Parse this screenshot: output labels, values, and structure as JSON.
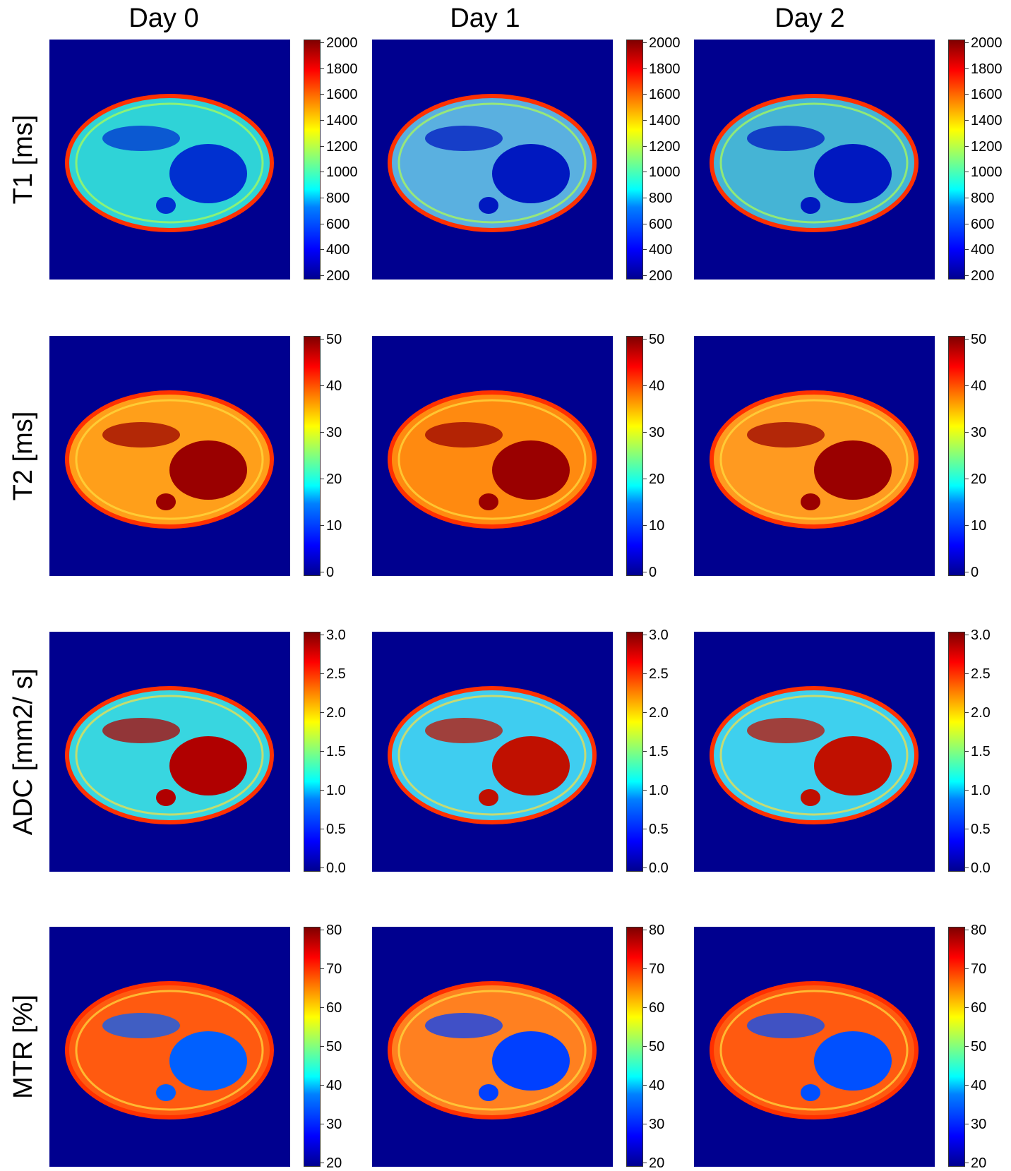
{
  "columns": [
    "Day 0",
    "Day 1",
    "Day 2"
  ],
  "rows": [
    {
      "label": "T1 [ms]",
      "ticks": [
        "2000",
        "1800",
        "1600",
        "1400",
        "1200",
        "1000",
        "800",
        "600",
        "400",
        "200"
      ]
    },
    {
      "label": "T2 [ms]",
      "ticks": [
        "50",
        "40",
        "30",
        "20",
        "10",
        "0"
      ]
    },
    {
      "label": "ADC [mm2/ s]",
      "ticks": [
        "3.0",
        "2.5",
        "2.0",
        "1.5",
        "1.0",
        "0.5",
        "0.0"
      ]
    },
    {
      "label": "MTR [%]",
      "ticks": [
        "80",
        "70",
        "60",
        "50",
        "40",
        "30",
        "20"
      ]
    }
  ],
  "colormap": "jet",
  "colors": {
    "background": "#00008f",
    "low": "#0000ff",
    "mid_low": "#00ffff",
    "mid": "#80ff80",
    "mid_high": "#ffff00",
    "high": "#ff0000",
    "max": "#800000"
  },
  "panel_tones": [
    [
      "#2fd3d7",
      "#5ab0e0",
      "#45b4d5"
    ],
    [
      "#ff9f1a",
      "#ff8a10",
      "#ff9a20"
    ],
    [
      "#38d6e0",
      "#3fcdf0",
      "#3ed0ee"
    ],
    [
      "#ff5a10",
      "#ff8020",
      "#ff5a10"
    ]
  ],
  "blob_tones": [
    [
      "#0030d0",
      "#0018c0",
      "#0018c0"
    ],
    [
      "#9a0000",
      "#9a0000",
      "#9a0000"
    ],
    [
      "#b00000",
      "#c01000",
      "#c01000"
    ],
    [
      "#0060ff",
      "#0040ff",
      "#0050ff"
    ]
  ]
}
